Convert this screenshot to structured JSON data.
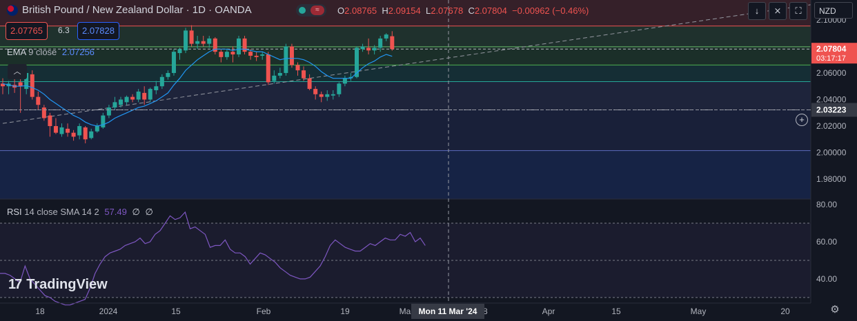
{
  "header": {
    "symbol_title": "British Pound / New Zealand Dollar · 1D · OANDA",
    "flag_icon": "gbp-nzd-flag-icon",
    "ohlc": {
      "o_label": "O",
      "o_value": "2.08765",
      "h_label": "H",
      "h_value": "2.09154",
      "l_label": "L",
      "l_value": "2.07678",
      "c_label": "C",
      "c_value": "2.07804",
      "change": "−0.00962 (−0.46%)"
    },
    "sell_price": "2.07765",
    "spread": "6.3",
    "buy_price": "2.07828",
    "currency": "NZD",
    "toolbar_icons": [
      "arrow-down-icon",
      "collapse-icon",
      "fullscreen-icon"
    ]
  },
  "ema": {
    "label": "EMA",
    "params": "9 close",
    "value": "2.07256",
    "color": "#2196f3"
  },
  "rsi": {
    "label": "RSI",
    "params": "14 close SMA 14 2",
    "value": "57.49",
    "extra1": "∅",
    "extra2": "∅",
    "color": "#7e57c2"
  },
  "logo": {
    "text": "TradingView"
  },
  "crosshair": {
    "date_label": "Mon 11 Mar '24",
    "price_label": "2.03223"
  },
  "last_price": {
    "value": "2.07804",
    "countdown": "03:17:17"
  },
  "colors": {
    "up": "#26a69a",
    "down": "#ef5350",
    "background": "#131722",
    "grid_text": "#b2b5be"
  },
  "chart_data": [
    {
      "type": "candlestick",
      "title": "British Pound / New Zealand Dollar · 1D · OANDA",
      "ylim": [
        1.965,
        2.115
      ],
      "y_ticks": [
        "2.10000",
        "2.08000",
        "2.06000",
        "2.04000",
        "2.02000",
        "2.00000",
        "1.98000"
      ],
      "x_ticks": [
        "18",
        "2024",
        "15",
        "Feb",
        "19",
        "Ma",
        "18",
        "Apr",
        "15",
        "May",
        "20"
      ],
      "candles": [
        {
          "o": 2.052,
          "h": 2.056,
          "l": 2.044,
          "c": 2.05
        },
        {
          "o": 2.05,
          "h": 2.054,
          "l": 2.044,
          "c": 2.052
        },
        {
          "o": 2.051,
          "h": 2.056,
          "l": 2.045,
          "c": 2.049
        },
        {
          "o": 2.053,
          "h": 2.06,
          "l": 2.03,
          "c": 2.05
        },
        {
          "o": 2.048,
          "h": 2.06,
          "l": 2.044,
          "c": 2.06
        },
        {
          "o": 2.059,
          "h": 2.062,
          "l": 2.04,
          "c": 2.042
        },
        {
          "o": 2.042,
          "h": 2.046,
          "l": 2.032,
          "c": 2.036
        },
        {
          "o": 2.034,
          "h": 2.036,
          "l": 2.024,
          "c": 2.026
        },
        {
          "o": 2.028,
          "h": 2.03,
          "l": 2.012,
          "c": 2.02
        },
        {
          "o": 2.02,
          "h": 2.026,
          "l": 2.014,
          "c": 2.015
        },
        {
          "o": 2.014,
          "h": 2.022,
          "l": 2.012,
          "c": 2.019
        },
        {
          "o": 2.018,
          "h": 2.022,
          "l": 2.012,
          "c": 2.015
        },
        {
          "o": 2.015,
          "h": 2.017,
          "l": 2.009,
          "c": 2.012
        },
        {
          "o": 2.013,
          "h": 2.022,
          "l": 2.01,
          "c": 2.02
        },
        {
          "o": 2.019,
          "h": 2.02,
          "l": 2.007,
          "c": 2.01
        },
        {
          "o": 2.011,
          "h": 2.018,
          "l": 2.01,
          "c": 2.016
        },
        {
          "o": 2.016,
          "h": 2.022,
          "l": 2.015,
          "c": 2.02
        },
        {
          "o": 2.019,
          "h": 2.03,
          "l": 2.018,
          "c": 2.028
        },
        {
          "o": 2.028,
          "h": 2.036,
          "l": 2.026,
          "c": 2.034
        },
        {
          "o": 2.034,
          "h": 2.042,
          "l": 2.032,
          "c": 2.038
        },
        {
          "o": 2.036,
          "h": 2.042,
          "l": 2.034,
          "c": 2.04
        },
        {
          "o": 2.038,
          "h": 2.043,
          "l": 2.036,
          "c": 2.042
        },
        {
          "o": 2.042,
          "h": 2.044,
          "l": 2.038,
          "c": 2.04
        },
        {
          "o": 2.04,
          "h": 2.048,
          "l": 2.038,
          "c": 2.046
        },
        {
          "o": 2.045,
          "h": 2.05,
          "l": 2.036,
          "c": 2.04
        },
        {
          "o": 2.04,
          "h": 2.049,
          "l": 2.038,
          "c": 2.048
        },
        {
          "o": 2.047,
          "h": 2.054,
          "l": 2.044,
          "c": 2.05
        },
        {
          "o": 2.05,
          "h": 2.059,
          "l": 2.048,
          "c": 2.057
        },
        {
          "o": 2.057,
          "h": 2.062,
          "l": 2.055,
          "c": 2.06
        },
        {
          "o": 2.06,
          "h": 2.078,
          "l": 2.058,
          "c": 2.076
        },
        {
          "o": 2.075,
          "h": 2.079,
          "l": 2.07,
          "c": 2.078
        },
        {
          "o": 2.077,
          "h": 2.094,
          "l": 2.075,
          "c": 2.092
        },
        {
          "o": 2.092,
          "h": 2.096,
          "l": 2.08,
          "c": 2.082
        },
        {
          "o": 2.082,
          "h": 2.088,
          "l": 2.078,
          "c": 2.084
        },
        {
          "o": 2.084,
          "h": 2.088,
          "l": 2.08,
          "c": 2.082
        },
        {
          "o": 2.082,
          "h": 2.088,
          "l": 2.079,
          "c": 2.086
        },
        {
          "o": 2.086,
          "h": 2.087,
          "l": 2.074,
          "c": 2.076
        },
        {
          "o": 2.076,
          "h": 2.078,
          "l": 2.068,
          "c": 2.072
        },
        {
          "o": 2.072,
          "h": 2.078,
          "l": 2.07,
          "c": 2.076
        },
        {
          "o": 2.076,
          "h": 2.08,
          "l": 2.068,
          "c": 2.074
        },
        {
          "o": 2.074,
          "h": 2.088,
          "l": 2.072,
          "c": 2.086
        },
        {
          "o": 2.086,
          "h": 2.088,
          "l": 2.074,
          "c": 2.076
        },
        {
          "o": 2.076,
          "h": 2.078,
          "l": 2.07,
          "c": 2.073
        },
        {
          "o": 2.073,
          "h": 2.076,
          "l": 2.069,
          "c": 2.072
        },
        {
          "o": 2.073,
          "h": 2.076,
          "l": 2.07,
          "c": 2.074
        },
        {
          "o": 2.074,
          "h": 2.076,
          "l": 2.051,
          "c": 2.053
        },
        {
          "o": 2.054,
          "h": 2.062,
          "l": 2.052,
          "c": 2.058
        },
        {
          "o": 2.058,
          "h": 2.064,
          "l": 2.056,
          "c": 2.06
        },
        {
          "o": 2.06,
          "h": 2.082,
          "l": 2.058,
          "c": 2.08
        },
        {
          "o": 2.08,
          "h": 2.082,
          "l": 2.064,
          "c": 2.066
        },
        {
          "o": 2.066,
          "h": 2.068,
          "l": 2.058,
          "c": 2.062
        },
        {
          "o": 2.062,
          "h": 2.065,
          "l": 2.054,
          "c": 2.056
        },
        {
          "o": 2.056,
          "h": 2.059,
          "l": 2.047,
          "c": 2.048
        },
        {
          "o": 2.048,
          "h": 2.05,
          "l": 2.04,
          "c": 2.044
        },
        {
          "o": 2.044,
          "h": 2.046,
          "l": 2.038,
          "c": 2.042
        },
        {
          "o": 2.042,
          "h": 2.047,
          "l": 2.039,
          "c": 2.044
        },
        {
          "o": 2.043,
          "h": 2.047,
          "l": 2.04,
          "c": 2.044
        },
        {
          "o": 2.044,
          "h": 2.053,
          "l": 2.042,
          "c": 2.052
        },
        {
          "o": 2.052,
          "h": 2.058,
          "l": 2.05,
          "c": 2.056
        },
        {
          "o": 2.056,
          "h": 2.06,
          "l": 2.054,
          "c": 2.057
        },
        {
          "o": 2.057,
          "h": 2.08,
          "l": 2.056,
          "c": 2.079
        },
        {
          "o": 2.078,
          "h": 2.082,
          "l": 2.076,
          "c": 2.08
        },
        {
          "o": 2.079,
          "h": 2.086,
          "l": 2.074,
          "c": 2.077
        },
        {
          "o": 2.077,
          "h": 2.081,
          "l": 2.074,
          "c": 2.079
        },
        {
          "o": 2.079,
          "h": 2.088,
          "l": 2.076,
          "c": 2.086
        },
        {
          "o": 2.086,
          "h": 2.09,
          "l": 2.084,
          "c": 2.089
        },
        {
          "o": 2.0877,
          "h": 2.0915,
          "l": 2.0768,
          "c": 2.078
        }
      ],
      "ema_values": [
        2.052,
        2.051,
        2.05,
        2.05,
        2.0505,
        2.049,
        2.047,
        2.044,
        2.04,
        2.037,
        2.034,
        2.031,
        2.028,
        2.026,
        2.023,
        2.021,
        2.02,
        2.021,
        2.023,
        2.026,
        2.028,
        2.03,
        2.032,
        2.034,
        2.035,
        2.037,
        2.039,
        2.042,
        2.045,
        2.051,
        2.056,
        2.062,
        2.066,
        2.07,
        2.073,
        2.076,
        2.078,
        2.078,
        2.078,
        2.077,
        2.078,
        2.078,
        2.077,
        2.076,
        2.076,
        2.074,
        2.072,
        2.07,
        2.071,
        2.071,
        2.071,
        2.07,
        2.068,
        2.065,
        2.061,
        2.058,
        2.056,
        2.056,
        2.056,
        2.056,
        2.06,
        2.064,
        2.067,
        2.069,
        2.072,
        2.074,
        2.0726
      ],
      "horizontal_levels": [
        2.0954,
        2.0798,
        2.078,
        2.066,
        2.0535,
        2.0322,
        2.0015
      ],
      "zones": [
        {
          "from": 2.0954,
          "to": 2.115,
          "color": "#ef5350"
        },
        {
          "from": 2.078,
          "to": 2.0954,
          "color": "#66bb6a"
        },
        {
          "from": 2.066,
          "to": 2.078,
          "color": "#4caf50"
        },
        {
          "from": 2.0535,
          "to": 2.066,
          "color": "#26a69a"
        },
        {
          "from": 2.0322,
          "to": 2.0535,
          "color": "#5c6bc0"
        },
        {
          "from": 2.0015,
          "to": 2.0322,
          "color": "#3f51b5"
        },
        {
          "from": 1.965,
          "to": 2.0015,
          "color": "#2962ff"
        }
      ],
      "trendline": {
        "from_index": 0,
        "from_price": 2.022,
        "to_index": 137,
        "to_price": 2.1115
      }
    },
    {
      "type": "line",
      "title": "RSI 14 close SMA 14 2",
      "ylim": [
        27,
        83
      ],
      "y_ticks": [
        "80.00",
        "60.00",
        "40.00"
      ],
      "levels": [
        70,
        50,
        30
      ],
      "values": [
        43,
        43,
        42,
        40,
        38,
        47,
        40,
        37,
        34,
        31,
        30,
        28,
        27,
        26,
        26,
        27,
        28,
        29,
        35,
        43,
        48,
        52,
        54,
        55,
        56,
        58,
        59,
        60,
        62,
        59,
        60,
        64,
        66,
        70,
        74,
        72,
        73,
        76,
        67,
        68,
        66,
        64,
        57,
        58,
        58,
        61,
        56,
        54,
        54,
        52,
        48,
        51,
        54,
        53,
        51,
        49,
        46,
        44,
        42,
        41,
        40,
        40,
        41,
        44,
        47,
        52,
        58,
        61,
        59,
        57,
        56,
        55,
        55,
        57,
        59,
        58,
        60,
        62,
        61,
        61,
        64,
        63,
        65,
        60,
        62,
        58
      ],
      "value_last": 57.49
    }
  ]
}
